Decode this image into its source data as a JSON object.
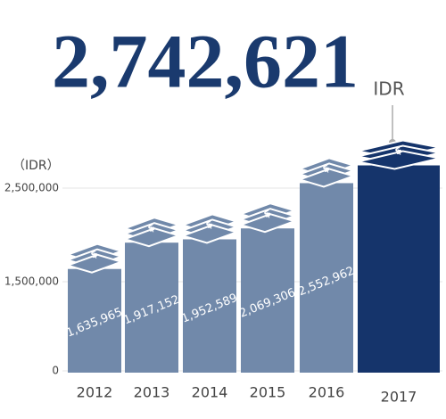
{
  "chart_data": {
    "type": "bar",
    "headline_unit": "IDR",
    "y_label": "（IDR）",
    "categories": [
      "2012",
      "2013",
      "2014",
      "2015",
      "2016",
      "2017"
    ],
    "values": [
      1635965,
      1917152,
      1952589,
      2069306,
      2552962,
      2742621
    ],
    "value_labels": [
      "1,635,965",
      "1,917,152",
      "1,952,589",
      "2,069,306",
      "2,552,962",
      "2,742,621"
    ],
    "colors": [
      "#7189aa",
      "#7189aa",
      "#7189aa",
      "#7189aa",
      "#7189aa",
      "#15346b"
    ],
    "yticks": [
      0,
      {
        "value": 1500000,
        "label": "1,500,000"
      },
      {
        "value": 2500000,
        "label": "2,500,000"
      }
    ],
    "grid": true
  }
}
